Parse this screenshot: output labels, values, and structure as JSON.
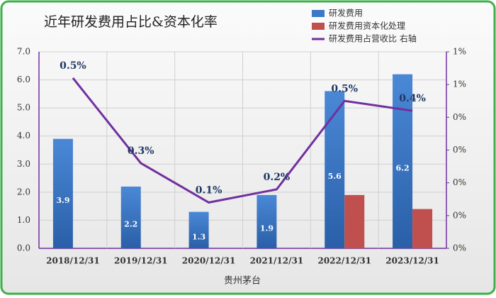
{
  "chart_data": {
    "type": "bar-line",
    "title": "近年研发费用占比&资本化率",
    "x_label": "贵州茅台",
    "categories": [
      "2018/12/31",
      "2019/12/31",
      "2020/12/31",
      "2021/12/31",
      "2022/12/31",
      "2023/12/31"
    ],
    "series": [
      {
        "name": "研发费用",
        "type": "bar",
        "color": "#3a78c8",
        "values": [
          3.9,
          2.2,
          1.3,
          1.9,
          5.6,
          6.2
        ],
        "value_labels": [
          "3.9",
          "2.2",
          "1.3",
          "1.9",
          "5.6",
          "6.2"
        ]
      },
      {
        "name": "研发费用资本化处理",
        "type": "bar",
        "color": "#c0504d",
        "values": [
          null,
          null,
          null,
          null,
          1.9,
          1.4
        ]
      },
      {
        "name": "研发费用占营收比 右轴",
        "type": "line",
        "axis": "y2",
        "color": "#7030a0",
        "values": [
          0.52,
          0.26,
          0.14,
          0.18,
          0.45,
          0.42
        ],
        "value_labels": [
          "0.5%",
          "0.3%",
          "0.1%",
          "0.2%",
          "0.5%",
          "0.4%"
        ]
      }
    ],
    "ylim": [
      0,
      7
    ],
    "yticks": [
      {
        "value": 0,
        "label": "0.0"
      },
      {
        "value": 1,
        "label": "1.0"
      },
      {
        "value": 2,
        "label": "2.0"
      },
      {
        "value": 3,
        "label": "3.0"
      },
      {
        "value": 4,
        "label": "4.0"
      },
      {
        "value": 5,
        "label": "5.0"
      },
      {
        "value": 6,
        "label": "6.0"
      },
      {
        "value": 7,
        "label": "7.0"
      }
    ],
    "y2lim": [
      0,
      0.6
    ],
    "y2ticks": [
      {
        "value": 0,
        "label": "0%"
      },
      {
        "value": 0.1,
        "label": "0%"
      },
      {
        "value": 0.2,
        "label": "0%"
      },
      {
        "value": 0.3,
        "label": "0%"
      },
      {
        "value": 0.4,
        "label": "0%"
      },
      {
        "value": 0.5,
        "label": "1%"
      },
      {
        "value": 0.6,
        "label": "1%"
      }
    ],
    "grid": true
  }
}
